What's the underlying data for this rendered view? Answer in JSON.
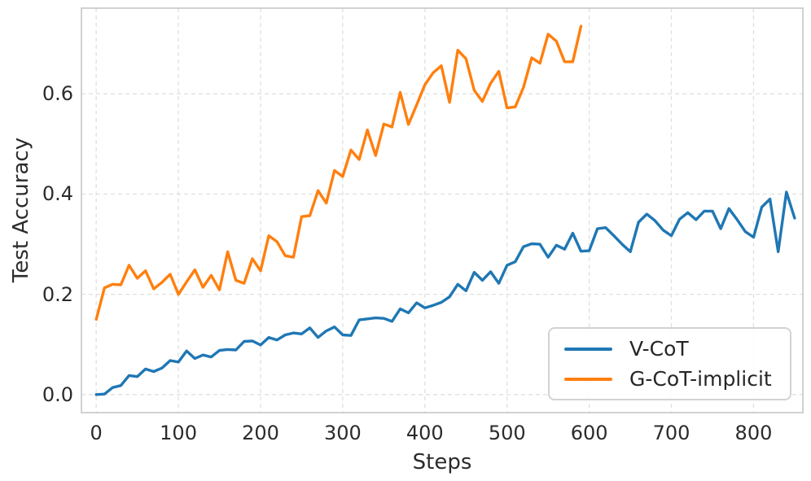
{
  "chart_data": {
    "type": "line",
    "title": "",
    "xlabel": "Steps",
    "ylabel": "Test Accuracy",
    "xlim": [
      -18,
      860
    ],
    "ylim": [
      -0.036,
      0.771
    ],
    "x_ticks": [
      0,
      100,
      200,
      300,
      400,
      500,
      600,
      700,
      800
    ],
    "x_tick_labels": [
      "0",
      "100",
      "200",
      "300",
      "400",
      "500",
      "600",
      "700",
      "800"
    ],
    "y_ticks": [
      0.0,
      0.2,
      0.4,
      0.6
    ],
    "y_tick_labels": [
      "0.0",
      "0.2",
      "0.4",
      "0.6"
    ],
    "grid": "dashed-both-axes",
    "grid_color": "#e0e0e0",
    "spine_color": "#cccccc",
    "legend_position": "lower right",
    "series": [
      {
        "name": "V-CoT",
        "color": "#1f77b4",
        "x_start": 0,
        "x_step": 10,
        "values": [
          0.0,
          0.001,
          0.014,
          0.018,
          0.038,
          0.036,
          0.051,
          0.046,
          0.053,
          0.068,
          0.065,
          0.087,
          0.072,
          0.079,
          0.075,
          0.088,
          0.09,
          0.089,
          0.106,
          0.107,
          0.099,
          0.114,
          0.109,
          0.119,
          0.123,
          0.121,
          0.133,
          0.114,
          0.127,
          0.135,
          0.119,
          0.118,
          0.149,
          0.151,
          0.153,
          0.152,
          0.146,
          0.171,
          0.163,
          0.183,
          0.173,
          0.178,
          0.184,
          0.195,
          0.22,
          0.207,
          0.244,
          0.228,
          0.245,
          0.222,
          0.258,
          0.265,
          0.295,
          0.301,
          0.3,
          0.274,
          0.298,
          0.29,
          0.322,
          0.286,
          0.287,
          0.331,
          0.333,
          0.317,
          0.3,
          0.285,
          0.344,
          0.36,
          0.347,
          0.328,
          0.317,
          0.35,
          0.363,
          0.349,
          0.366,
          0.366,
          0.331,
          0.371,
          0.349,
          0.325,
          0.314,
          0.374,
          0.39,
          0.285,
          0.404,
          0.352
        ]
      },
      {
        "name": "G-CoT-implicit",
        "color": "#ff7f0e",
        "x_start": 0,
        "x_step": 10,
        "values": [
          0.15,
          0.213,
          0.22,
          0.219,
          0.258,
          0.232,
          0.247,
          0.211,
          0.224,
          0.24,
          0.2,
          0.225,
          0.249,
          0.214,
          0.238,
          0.209,
          0.285,
          0.228,
          0.222,
          0.271,
          0.247,
          0.317,
          0.305,
          0.277,
          0.274,
          0.355,
          0.357,
          0.407,
          0.382,
          0.447,
          0.435,
          0.488,
          0.469,
          0.528,
          0.477,
          0.54,
          0.534,
          0.603,
          0.539,
          0.578,
          0.618,
          0.642,
          0.656,
          0.583,
          0.687,
          0.67,
          0.607,
          0.585,
          0.621,
          0.645,
          0.572,
          0.574,
          0.613,
          0.672,
          0.661,
          0.719,
          0.705,
          0.664,
          0.664,
          0.735
        ]
      }
    ]
  }
}
